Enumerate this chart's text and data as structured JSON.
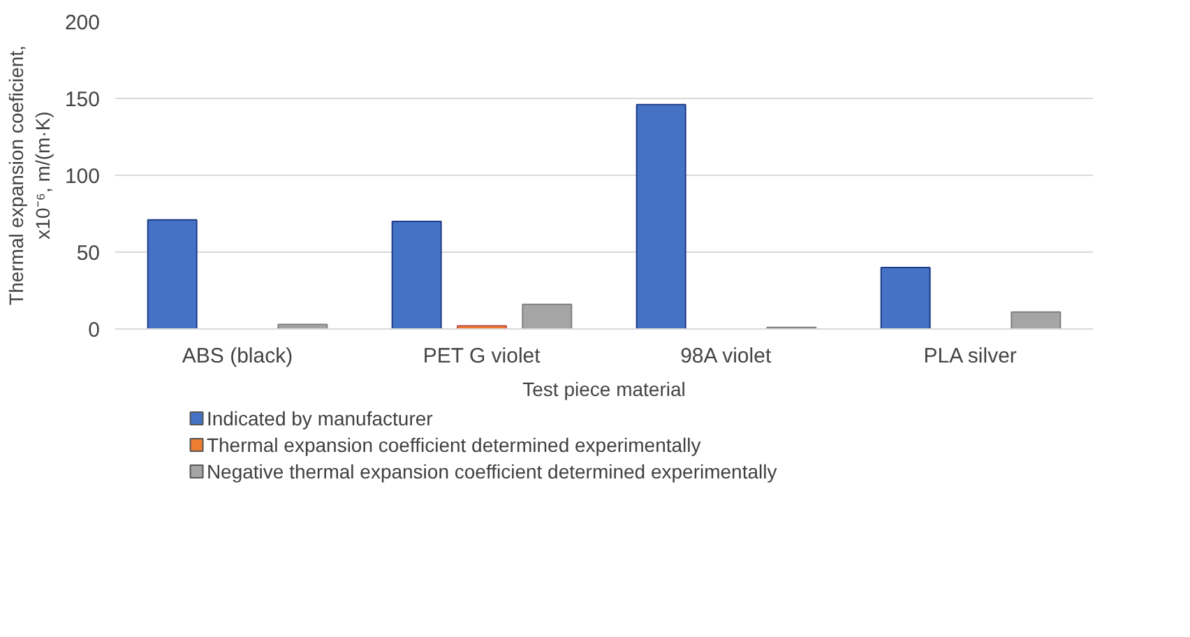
{
  "chart_data": {
    "type": "bar",
    "categories": [
      "ABS (black)",
      "PET G violet",
      "98A violet",
      "PLA silver"
    ],
    "series": [
      {
        "name": "Indicated by manufacturer",
        "color": "#4472c4",
        "values": [
          71,
          70,
          146,
          40
        ]
      },
      {
        "name": "Thermal expansion coefficient determined experimentally",
        "color": "#ed7d31",
        "values": [
          null,
          2,
          null,
          null
        ]
      },
      {
        "name": "Negative thermal expansion coefficient determined experimentally",
        "color": "#a5a5a5",
        "values": [
          3,
          16,
          1,
          11
        ]
      }
    ],
    "xlabel": "Test piece material",
    "ylabel": "Thermal expansion coeficient, x10⁻⁶, m/(m·K)",
    "ylim": [
      0,
      200
    ],
    "yticks": [
      0,
      50,
      100,
      150,
      200
    ],
    "grid": "y",
    "legend": "bottom"
  }
}
